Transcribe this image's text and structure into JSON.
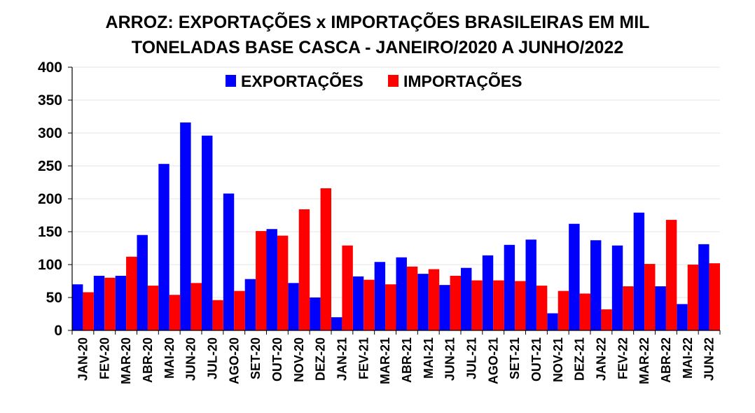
{
  "chart_data": {
    "type": "bar",
    "title_line1": "ARROZ: EXPORTAÇÕES x IMPORTAÇÕES BRASILEIRAS EM MIL",
    "title_line2": "TONELADAS BASE CASCA - JANEIRO/2020 A JUNHO/2022",
    "xlabel": "",
    "ylabel": "",
    "ylim": [
      0,
      400
    ],
    "yticks": [
      0,
      50,
      100,
      150,
      200,
      250,
      300,
      350,
      400
    ],
    "grid": true,
    "legend_position": "top",
    "categories": [
      "JAN-20",
      "FEV-20",
      "MAR-20",
      "ABR-20",
      "MAI-20",
      "JUN-20",
      "JUL-20",
      "AGO-20",
      "SET-20",
      "OUT-20",
      "NOV-20",
      "DEZ-20",
      "JAN-21",
      "FEV-21",
      "MAR-21",
      "ABR-21",
      "MAI-21",
      "JUN-21",
      "JUL-21",
      "AGO-21",
      "SET-21",
      "OUT-21",
      "NOV-21",
      "DEZ-21",
      "JAN-22",
      "FEV-22",
      "MAR-22",
      "ABR-22",
      "MAI-22",
      "JUN-22"
    ],
    "series": [
      {
        "name": "EXPORTAÇÕES",
        "color": "#0000ff",
        "values": [
          70,
          83,
          83,
          145,
          253,
          316,
          296,
          208,
          78,
          154,
          72,
          50,
          20,
          82,
          104,
          111,
          86,
          69,
          95,
          114,
          130,
          138,
          26,
          162,
          137,
          129,
          179,
          67,
          40,
          131
        ]
      },
      {
        "name": "IMPORTAÇÕES",
        "color": "#ff0000",
        "values": [
          58,
          80,
          112,
          68,
          54,
          72,
          46,
          60,
          151,
          144,
          184,
          216,
          129,
          77,
          70,
          97,
          93,
          83,
          76,
          76,
          75,
          68,
          60,
          56,
          32,
          67,
          101,
          168,
          100,
          102
        ]
      }
    ]
  }
}
